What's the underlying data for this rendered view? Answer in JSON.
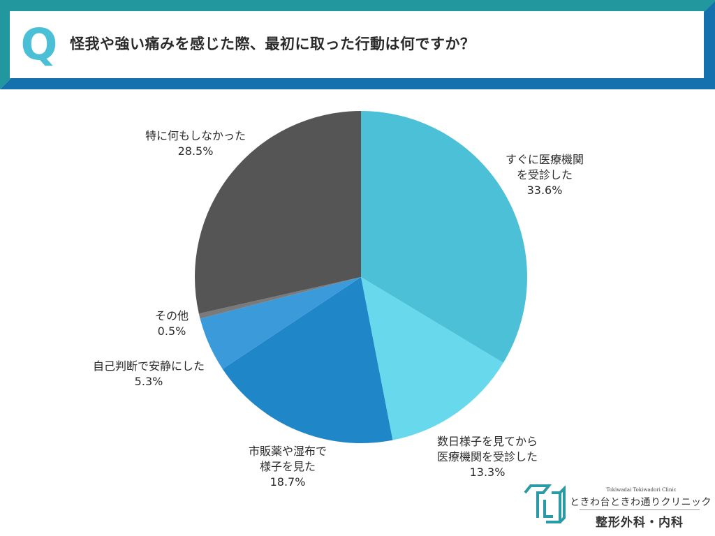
{
  "header": {
    "q_letter": "Q",
    "title": "怪我や強い痛みを感じた際、最初に取った行動は何ですか？",
    "colors": {
      "frame_top": "#23979e",
      "frame_bottom": "#1570ae",
      "q": "#4bbfd5"
    }
  },
  "chart_data": {
    "type": "pie",
    "title": "怪我や強い痛みを感じた際、最初に取った行動は何ですか？",
    "start_angle_deg": 0,
    "direction": "clockwise",
    "unit": "%",
    "slices": [
      {
        "label": "すぐに医療機関を受診した",
        "label_lines": [
          "すぐに医療機関",
          "を受診した"
        ],
        "value": 33.6,
        "display": "33.6%",
        "color": "#4bc0d6"
      },
      {
        "label": "数日様子を見てから医療機関を受診した",
        "label_lines": [
          "数日様子を見てから",
          "医療機関を受診した"
        ],
        "value": 13.3,
        "display": "13.3%",
        "color": "#68d8ec"
      },
      {
        "label": "市販薬や湿布で様子を見た",
        "label_lines": [
          "市販薬や湿布で",
          "様子を見た"
        ],
        "value": 18.7,
        "display": "18.7%",
        "color": "#1f86c8"
      },
      {
        "label": "自己判断で安静にした",
        "label_lines": [
          "自己判断で安静にした"
        ],
        "value": 5.3,
        "display": "5.3%",
        "color": "#3b9ad9"
      },
      {
        "label": "その他",
        "label_lines": [
          "その他"
        ],
        "value": 0.5,
        "display": "0.5%",
        "color": "#7a7a7a"
      },
      {
        "label": "特に何もしなかった",
        "label_lines": [
          "特に何もしなかった"
        ],
        "value": 28.5,
        "display": "28.5%",
        "color": "#555555"
      }
    ]
  },
  "logo": {
    "name_en": "Tokiwadai Tokiwadori Clinic",
    "name_jp": "ときわ台ときわ通りクリニック",
    "departments": "整形外科・内科",
    "color": "#2a9aa6"
  }
}
